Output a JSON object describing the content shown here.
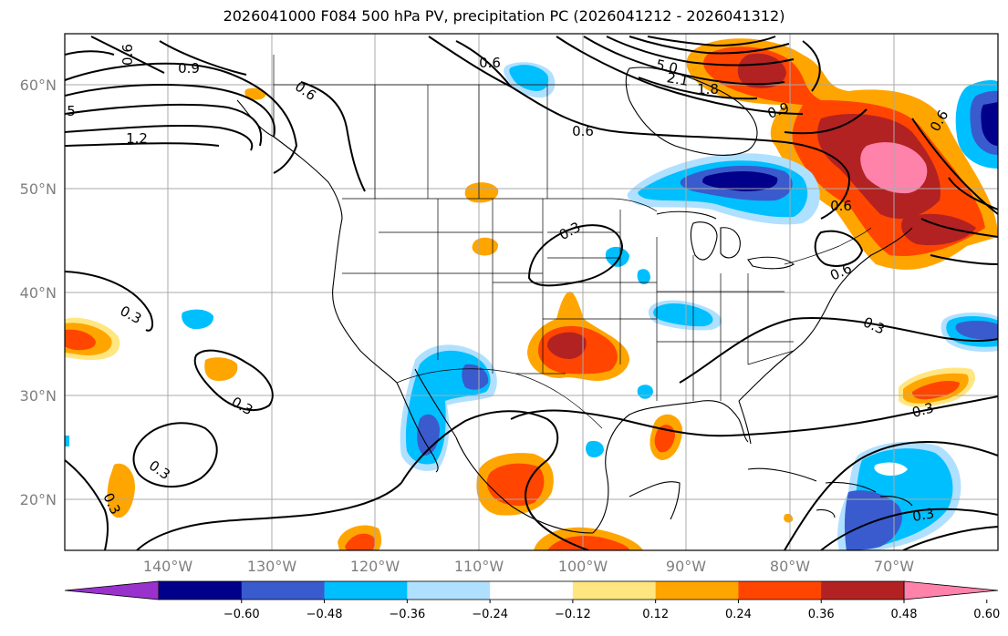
{
  "title": "2026041000 F084 500 hPa PV, precipitation PC (2026041212 - 2026041312)",
  "map": {
    "lon_range": [
      -150,
      -60
    ],
    "lat_range": [
      15,
      65
    ],
    "lon_ticks": [
      "140°W",
      "130°W",
      "120°W",
      "110°W",
      "100°W",
      "90°W",
      "80°W",
      "70°W"
    ],
    "lat_ticks": [
      "60°N",
      "50°N",
      "40°N",
      "30°N",
      "20°N"
    ],
    "grid": true,
    "contour_labels": [
      "0.6",
      "0.9",
      "0.6",
      "5",
      "1.2",
      "0.6",
      "5.0",
      "1.8",
      "2.1",
      "0.9",
      "0.6",
      "0.3",
      "0.6",
      "0.6",
      "0.3",
      "0.3",
      "0.3",
      "0.3",
      "0.3",
      "0.3",
      "0.3",
      "0.6"
    ]
  },
  "colorbar": {
    "ticks": [
      "−0.60",
      "−0.48",
      "−0.36",
      "−0.24",
      "−0.12",
      "0.12",
      "0.24",
      "0.36",
      "0.48",
      "0.60"
    ],
    "colors": [
      "#9932cc",
      "#00008b",
      "#3a5bcd",
      "#00bfff",
      "#b0e0ff",
      "#ffffff",
      "#ffe680",
      "#ffa500",
      "#ff4500",
      "#b22222",
      "#ff82ab"
    ]
  }
}
